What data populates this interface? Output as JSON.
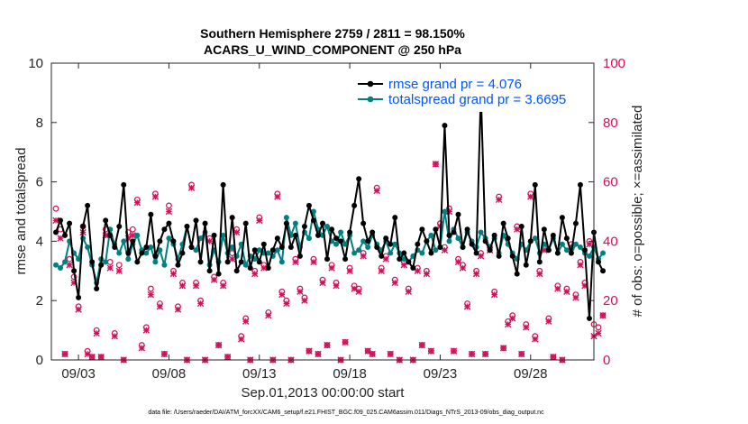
{
  "chart_data": {
    "type": "line",
    "title_line1": "Southern Hemisphere 2759 / 2811 = 98.150%",
    "title_line2": "ACARS_U_WIND_COMPONENT @ 250 hPa",
    "ylabel": "rmse and totalspread",
    "ylabel_right": "# of obs: o=possible; ×=assimilated",
    "xlabel": "Sep.01,2013 00:00:00 start",
    "footer": "data file: /Users/raeder/DAI/ATM_forcXX/CAM6_setup/f.e21.FHIST_BGC.f09_025.CAM6assim.011/Diags_NTrS_2013-09/obs_diag_output.nc",
    "xlim": [
      1.5,
      31.5
    ],
    "ylim": [
      0,
      10
    ],
    "ylim_right": [
      0,
      100
    ],
    "yticks": [
      0,
      2,
      4,
      6,
      8,
      10
    ],
    "yticks_right": [
      0,
      20,
      40,
      60,
      80,
      100
    ],
    "xticks": [
      {
        "x": 3,
        "label": "09/03"
      },
      {
        "x": 8,
        "label": "09/08"
      },
      {
        "x": 13,
        "label": "09/13"
      },
      {
        "x": 18,
        "label": "09/18"
      },
      {
        "x": 23,
        "label": "09/23"
      },
      {
        "x": 28,
        "label": "09/28"
      }
    ],
    "colors": {
      "rmse": "#000000",
      "spread": "#008080",
      "obs": "#d0105a",
      "axis": "#262626"
    },
    "legend": {
      "position": "top-right",
      "rmse_label": "rmse grand pr = 4.076",
      "spread_label": "totalspread grand pr = 3.6695",
      "text_color": "#0055ff"
    },
    "series": [
      {
        "name": "rmse",
        "x_start": 1.75,
        "x_step": 0.25,
        "values": [
          4.3,
          4.7,
          4.2,
          4.6,
          3.0,
          2.1,
          4.5,
          5.2,
          3.3,
          2.4,
          3.2,
          4.7,
          4.2,
          3.8,
          4.5,
          5.9,
          3.6,
          4.0,
          3.3,
          3.6,
          3.8,
          4.9,
          3.5,
          4.0,
          4.4,
          4.6,
          4.0,
          3.2,
          3.6,
          4.5,
          3.8,
          4.7,
          3.3,
          4.6,
          3.0,
          4.2,
          2.9,
          5.9,
          3.3,
          4.8,
          3.0,
          3.3,
          4.6,
          3.1,
          3.7,
          3.3,
          3.9,
          3.1,
          3.7,
          4.1,
          3.8,
          4.6,
          3.8,
          4.2,
          3.5,
          4.5,
          5.2,
          4.7,
          4.2,
          4.6,
          3.4,
          4.4,
          4.1,
          4.0,
          3.4,
          4.3,
          5.2,
          6.1,
          4.6,
          4.0,
          4.3,
          3.8,
          3.5,
          4.1,
          3.9,
          4.8,
          3.4,
          3.6,
          3.3,
          3.1,
          3.9,
          4.4,
          4.0,
          3.6,
          4.4,
          3.8,
          7.9,
          4.2,
          4.3,
          4.9,
          3.8,
          4.4,
          3.9,
          3.6,
          9.0,
          4.0,
          3.7,
          4.2,
          3.5,
          4.6,
          4.1,
          3.5,
          2.9,
          4.5,
          3.2,
          4.0,
          5.9,
          3.3,
          4.4,
          3.7,
          4.2,
          3.6,
          4.8,
          4.1,
          3.6,
          4.6,
          5.9,
          3.7,
          1.4,
          4.3,
          3.3,
          3.0
        ]
      },
      {
        "name": "totalspread",
        "x_start": 1.75,
        "x_step": 0.25,
        "values": [
          3.2,
          3.1,
          3.3,
          4.0,
          3.6,
          3.4,
          4.1,
          3.8,
          3.2,
          2.6,
          3.4,
          3.3,
          4.4,
          3.9,
          3.6,
          4.0,
          3.4,
          3.9,
          4.2,
          3.7,
          3.6,
          3.8,
          3.3,
          3.7,
          3.2,
          4.1,
          3.9,
          3.4,
          3.9,
          4.5,
          3.8,
          3.7,
          4.1,
          4.3,
          3.2,
          3.7,
          3.3,
          4.2,
          3.6,
          3.8,
          3.5,
          3.9,
          3.2,
          3.5,
          3.4,
          3.7,
          3.6,
          3.6,
          3.5,
          3.7,
          3.3,
          4.8,
          4.2,
          4.6,
          3.8,
          4.3,
          4.1,
          5.0,
          4.4,
          4.2,
          4.5,
          4.0,
          3.9,
          4.3,
          3.9,
          4.2,
          3.6,
          3.7,
          4.0,
          3.8,
          4.2,
          3.9,
          3.7,
          4.0,
          3.6,
          3.9,
          3.6,
          3.4,
          3.3,
          3.5,
          3.7,
          3.6,
          4.0,
          4.2,
          3.7,
          3.8,
          5.0,
          4.0,
          4.4,
          4.1,
          3.8,
          4.3,
          4.0,
          3.8,
          4.3,
          4.1,
          3.8,
          4.1,
          3.6,
          4.2,
          3.9,
          3.6,
          3.4,
          3.9,
          3.7,
          4.0,
          4.1,
          3.6,
          3.9,
          3.7,
          4.1,
          3.6,
          3.9,
          3.7,
          3.6,
          3.9,
          3.8,
          3.6,
          3.5,
          3.8,
          3.4,
          3.6
        ]
      },
      {
        "name": "obs_possible",
        "x_start": 1.75,
        "x_step": 0.25,
        "values": [
          51,
          44,
          2,
          34,
          28,
          18,
          45,
          3,
          1,
          10,
          1,
          44,
          33,
          9,
          32,
          0,
          43,
          44,
          54,
          5,
          11,
          24,
          56,
          19,
          2,
          52,
          30,
          18,
          26,
          0,
          59,
          26,
          20,
          0,
          41,
          28,
          5,
          26,
          1,
          36,
          44,
          8,
          14,
          0,
          30,
          48,
          32,
          16,
          0,
          56,
          23,
          20,
          0,
          34,
          24,
          21,
          3,
          34,
          2,
          27,
          5,
          32,
          26,
          0,
          6,
          31,
          25,
          24,
          36,
          3,
          2,
          58,
          31,
          35,
          2,
          27,
          0,
          33,
          24,
          0,
          31,
          5,
          30,
          3,
          66,
          46,
          38,
          51,
          3,
          34,
          32,
          19,
          2,
          30,
          36,
          2,
          38,
          23,
          55,
          4,
          13,
          15,
          45,
          2,
          12,
          56,
          8,
          30,
          38,
          14,
          1,
          25,
          0,
          24,
          39,
          22,
          33,
          26,
          40,
          12,
          11,
          15
        ]
      },
      {
        "name": "obs_assimilated",
        "x_start": 1.75,
        "x_step": 0.25,
        "values": [
          47,
          41,
          2,
          32,
          26,
          17,
          43,
          2,
          1,
          9,
          1,
          42,
          31,
          8,
          30,
          0,
          41,
          42,
          53,
          4,
          10,
          22,
          55,
          18,
          2,
          50,
          29,
          17,
          25,
          0,
          58,
          25,
          19,
          0,
          40,
          27,
          5,
          25,
          1,
          34,
          43,
          7,
          13,
          0,
          29,
          47,
          31,
          15,
          0,
          55,
          22,
          19,
          0,
          33,
          23,
          20,
          3,
          33,
          2,
          26,
          5,
          31,
          25,
          0,
          6,
          30,
          24,
          23,
          35,
          3,
          2,
          57,
          30,
          34,
          2,
          26,
          0,
          32,
          23,
          0,
          30,
          5,
          29,
          3,
          66,
          45,
          37,
          50,
          3,
          33,
          31,
          18,
          2,
          29,
          35,
          2,
          37,
          22,
          54,
          4,
          12,
          14,
          44,
          2,
          11,
          55,
          7,
          29,
          37,
          13,
          1,
          24,
          0,
          23,
          38,
          21,
          32,
          25,
          39,
          8,
          9,
          15
        ]
      }
    ]
  }
}
